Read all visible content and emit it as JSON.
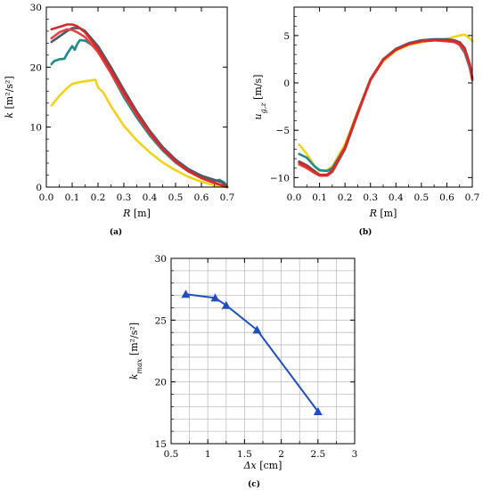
{
  "chart_data": [
    {
      "id": "a",
      "type": "line",
      "caption": "(a)",
      "xlabel_sym": "R",
      "xlabel_unit": " [m]",
      "ylabel_sym": "k",
      "ylabel_unit": " [m²/s²]",
      "xlim": [
        0,
        0.7
      ],
      "ylim": [
        0,
        30
      ],
      "xticks": [
        0,
        0.1,
        0.2,
        0.3,
        0.4,
        0.5,
        0.6,
        0.7
      ],
      "xtick_labels": [
        "0.0",
        "0.1",
        "0.2",
        "0.3",
        "0.4",
        "0.5",
        "0.6",
        "0.7"
      ],
      "yticks": [
        0,
        10,
        20,
        30
      ],
      "ytick_labels": [
        "0",
        "10",
        "20",
        "30"
      ],
      "grid": false,
      "series": [
        {
          "color": "#f2d21b",
          "x": [
            0.02,
            0.05,
            0.08,
            0.1,
            0.13,
            0.16,
            0.19,
            0.2,
            0.22,
            0.25,
            0.3,
            0.35,
            0.4,
            0.45,
            0.5,
            0.55,
            0.6,
            0.65,
            0.68,
            0.7
          ],
          "y": [
            13.6,
            15.2,
            16.5,
            17.2,
            17.5,
            17.7,
            17.9,
            16.6,
            15.8,
            13.5,
            10.2,
            7.8,
            5.8,
            4.1,
            2.8,
            1.7,
            0.9,
            0.3,
            0.1,
            0.0
          ]
        },
        {
          "color": "#1f8b8b",
          "x": [
            0.02,
            0.03,
            0.05,
            0.07,
            0.08,
            0.1,
            0.11,
            0.12,
            0.13,
            0.15,
            0.18,
            0.2,
            0.25,
            0.3,
            0.35,
            0.4,
            0.45,
            0.5,
            0.55,
            0.6,
            0.65,
            0.67,
            0.69,
            0.7
          ],
          "y": [
            20.5,
            21.0,
            21.3,
            21.4,
            22.2,
            23.5,
            22.9,
            23.9,
            24.5,
            24.4,
            23.6,
            22.5,
            19.0,
            15.0,
            11.6,
            8.6,
            6.1,
            4.1,
            2.6,
            1.5,
            1.0,
            1.2,
            0.7,
            0.0
          ]
        },
        {
          "color": "#4a5a6b",
          "x": [
            0.02,
            0.05,
            0.08,
            0.1,
            0.13,
            0.15,
            0.2,
            0.25,
            0.3,
            0.35,
            0.4,
            0.45,
            0.5,
            0.55,
            0.6,
            0.65,
            0.68,
            0.7
          ],
          "y": [
            24.2,
            25.1,
            26.0,
            26.5,
            26.5,
            26.0,
            23.5,
            20.0,
            16.2,
            12.6,
            9.4,
            6.7,
            4.6,
            3.0,
            1.9,
            1.2,
            0.8,
            0.0
          ]
        },
        {
          "color": "#e84040",
          "x": [
            0.02,
            0.05,
            0.08,
            0.1,
            0.12,
            0.15,
            0.2,
            0.25,
            0.3,
            0.35,
            0.4,
            0.45,
            0.5,
            0.55,
            0.6,
            0.65,
            0.68,
            0.7
          ],
          "y": [
            24.8,
            25.8,
            26.3,
            26.2,
            25.8,
            25.0,
            22.5,
            19.0,
            15.4,
            12.0,
            8.9,
            6.3,
            4.2,
            2.6,
            1.5,
            0.7,
            0.3,
            0.0
          ]
        },
        {
          "color": "#d42a2a",
          "x": [
            0.02,
            0.05,
            0.08,
            0.1,
            0.12,
            0.15,
            0.2,
            0.25,
            0.3,
            0.35,
            0.4,
            0.45,
            0.5,
            0.55,
            0.6,
            0.65,
            0.68,
            0.7
          ],
          "y": [
            26.3,
            26.7,
            27.1,
            27.1,
            26.8,
            25.8,
            23.0,
            19.5,
            15.8,
            12.3,
            9.1,
            6.4,
            4.3,
            2.7,
            1.5,
            0.7,
            0.3,
            0.0
          ]
        }
      ]
    },
    {
      "id": "b",
      "type": "line",
      "caption": "(b)",
      "xlabel_sym": "R",
      "xlabel_unit": " [m]",
      "ylabel_sym": "u",
      "ylabel_sub": "g,z",
      "ylabel_unit": " [m/s]",
      "xlim": [
        0,
        0.7
      ],
      "ylim": [
        -11,
        8
      ],
      "xticks": [
        0,
        0.1,
        0.2,
        0.3,
        0.4,
        0.5,
        0.6,
        0.7
      ],
      "xtick_labels": [
        "0.0",
        "0.1",
        "0.2",
        "0.3",
        "0.4",
        "0.5",
        "0.6",
        "0.7"
      ],
      "yticks": [
        -10,
        -5,
        0,
        5
      ],
      "ytick_labels": [
        "−10",
        "−5",
        "0",
        "5"
      ],
      "grid": false,
      "series": [
        {
          "color": "#f2d21b",
          "x": [
            0.02,
            0.05,
            0.08,
            0.1,
            0.13,
            0.15,
            0.2,
            0.25,
            0.3,
            0.35,
            0.4,
            0.45,
            0.5,
            0.55,
            0.6,
            0.62,
            0.65,
            0.67,
            0.69,
            0.7
          ],
          "y": [
            -6.5,
            -7.5,
            -8.8,
            -9.3,
            -9.2,
            -8.8,
            -6.5,
            -3.0,
            0.3,
            2.3,
            3.4,
            4.0,
            4.3,
            4.5,
            4.6,
            4.8,
            5.0,
            5.1,
            4.7,
            4.4
          ]
        },
        {
          "color": "#1f8b8b",
          "x": [
            0.02,
            0.05,
            0.08,
            0.1,
            0.13,
            0.15,
            0.2,
            0.25,
            0.3,
            0.35,
            0.4,
            0.45,
            0.5,
            0.55,
            0.6,
            0.63,
            0.65,
            0.67,
            0.69,
            0.7
          ],
          "y": [
            -7.5,
            -7.9,
            -8.8,
            -9.2,
            -9.3,
            -9.0,
            -6.8,
            -3.2,
            0.3,
            2.4,
            3.5,
            4.1,
            4.4,
            4.5,
            4.6,
            4.4,
            4.0,
            3.2,
            1.6,
            0.3
          ]
        },
        {
          "color": "#4a5a6b",
          "x": [
            0.02,
            0.05,
            0.08,
            0.1,
            0.13,
            0.15,
            0.2,
            0.25,
            0.3,
            0.35,
            0.4,
            0.45,
            0.5,
            0.55,
            0.6,
            0.63,
            0.65,
            0.67,
            0.69,
            0.7
          ],
          "y": [
            -8.3,
            -8.7,
            -9.3,
            -9.7,
            -9.8,
            -9.4,
            -7.0,
            -3.3,
            0.3,
            2.5,
            3.6,
            4.2,
            4.5,
            4.6,
            4.6,
            4.5,
            4.3,
            3.7,
            2.0,
            0.5
          ]
        },
        {
          "color": "#e84040",
          "x": [
            0.02,
            0.05,
            0.08,
            0.1,
            0.13,
            0.15,
            0.2,
            0.25,
            0.3,
            0.35,
            0.4,
            0.45,
            0.5,
            0.55,
            0.6,
            0.63,
            0.65,
            0.67,
            0.69,
            0.7
          ],
          "y": [
            -8.6,
            -9.0,
            -9.5,
            -9.8,
            -9.8,
            -9.3,
            -6.9,
            -3.2,
            0.3,
            2.4,
            3.5,
            4.1,
            4.4,
            4.5,
            4.4,
            4.3,
            4.0,
            3.4,
            1.8,
            0.3
          ]
        },
        {
          "color": "#d42a2a",
          "x": [
            0.02,
            0.05,
            0.08,
            0.1,
            0.13,
            0.15,
            0.2,
            0.25,
            0.3,
            0.35,
            0.4,
            0.45,
            0.5,
            0.55,
            0.6,
            0.63,
            0.65,
            0.67,
            0.69,
            0.7
          ],
          "y": [
            -8.4,
            -8.8,
            -9.4,
            -9.7,
            -9.7,
            -9.2,
            -6.8,
            -3.1,
            0.4,
            2.5,
            3.5,
            4.1,
            4.4,
            4.5,
            4.5,
            4.4,
            4.2,
            3.6,
            2.0,
            0.5
          ]
        }
      ]
    },
    {
      "id": "c",
      "type": "line",
      "caption": "(c)",
      "xlabel_sym": "Δx",
      "xlabel_unit": " [cm]",
      "ylabel_sym": "k",
      "ylabel_sub": "max",
      "ylabel_unit": " [m²/s²]",
      "xlim": [
        0.5,
        3
      ],
      "ylim": [
        15,
        30
      ],
      "xticks": [
        0.5,
        1,
        1.5,
        2,
        2.5,
        3
      ],
      "xtick_labels": [
        "0.5",
        "1",
        "1.5",
        "2",
        "2.5",
        "3"
      ],
      "yticks": [
        15,
        20,
        25,
        30
      ],
      "ytick_labels": [
        "15",
        "20",
        "25",
        "30"
      ],
      "grid": true,
      "marker": "triangle",
      "series": [
        {
          "color": "#1f4fbf",
          "x": [
            0.7,
            1.1,
            1.25,
            1.67,
            2.5
          ],
          "y": [
            27.1,
            26.8,
            26.2,
            24.2,
            17.6
          ]
        }
      ]
    }
  ]
}
